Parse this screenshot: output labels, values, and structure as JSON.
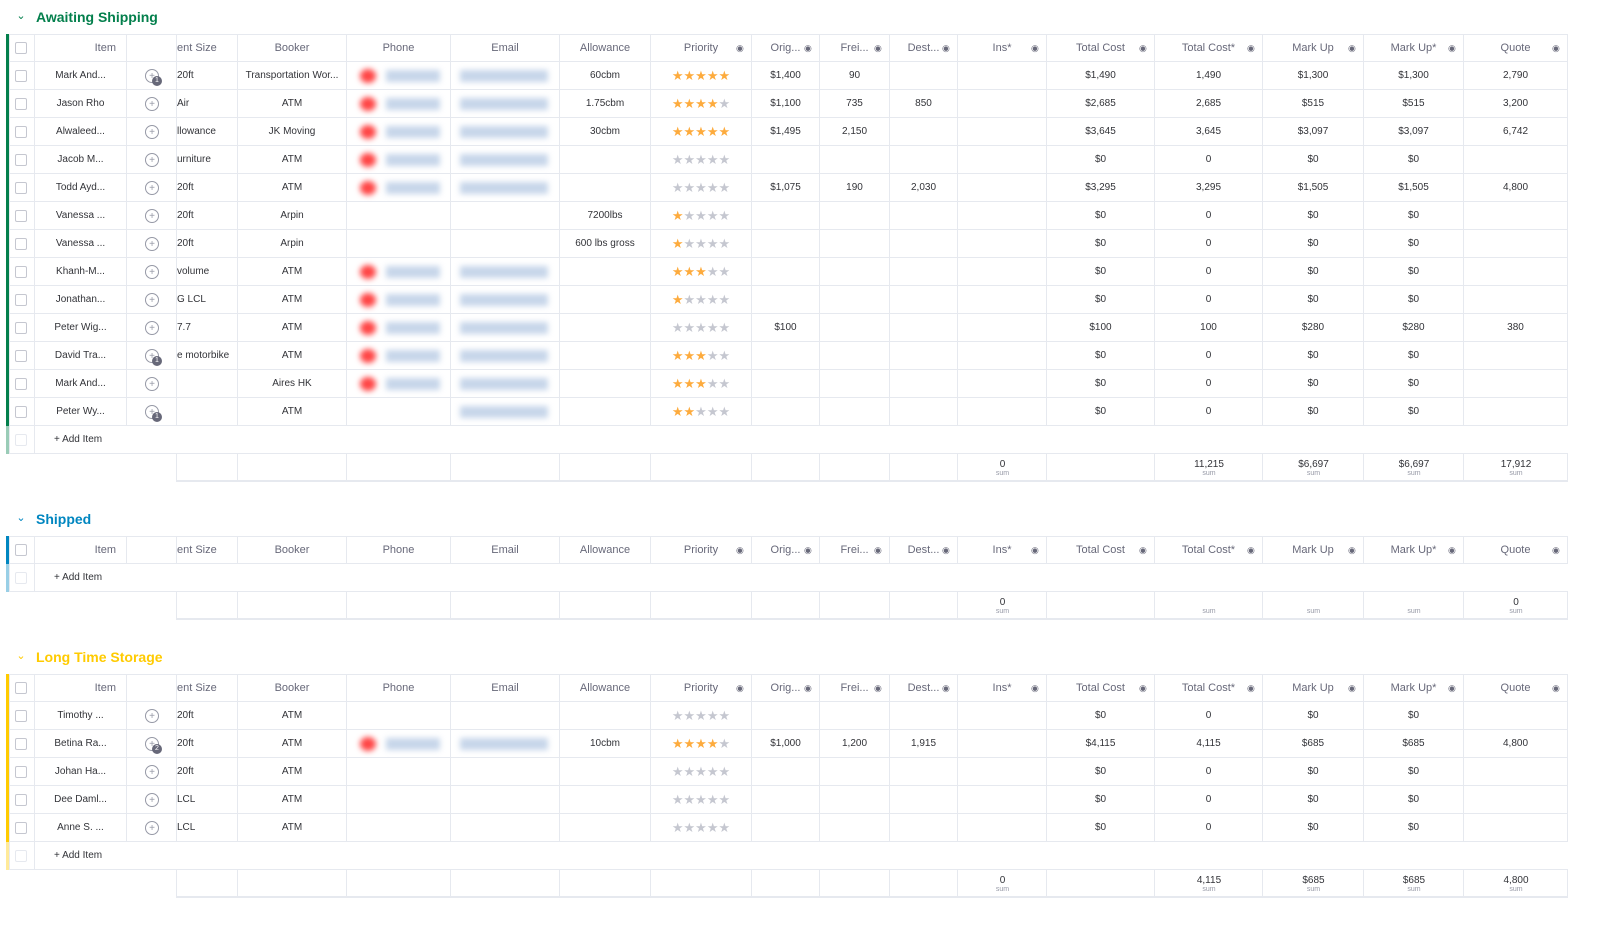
{
  "groups": [
    {
      "title": "Awaiting Shipping",
      "color": "#037f4c",
      "columns": [
        "Item",
        "ent Size",
        "Booker",
        "Phone",
        "Email",
        "Allowance",
        "Priority",
        "Orig...",
        "Frei...",
        "Dest...",
        "Ins*",
        "Total Cost",
        "Total Cost*",
        "Mark Up",
        "Mark Up*",
        "Quote"
      ],
      "rows": [
        {
          "cells": [
            "Mark And...",
            "20ft",
            "Transportation Wor...",
            null,
            null,
            "60cbm",
            5,
            "$1,400",
            "90",
            null,
            null,
            "$1,490",
            "1,490",
            "$1,300",
            "$1,300",
            "2,790"
          ],
          "updates": 1
        },
        {
          "cells": [
            "Jason Rho",
            "Air",
            "ATM",
            null,
            null,
            "1.75cbm",
            4,
            "$1,100",
            "735",
            "850",
            null,
            "$2,685",
            "2,685",
            "$515",
            "$515",
            "3,200"
          ],
          "updates": null
        },
        {
          "cells": [
            "Alwaleed...",
            "llowance",
            "JK Moving",
            null,
            null,
            "30cbm",
            5,
            "$1,495",
            "2,150",
            null,
            null,
            "$3,645",
            "3,645",
            "$3,097",
            "$3,097",
            "6,742"
          ],
          "updates": null
        },
        {
          "cells": [
            "Jacob M...",
            "urniture",
            "ATM",
            null,
            null,
            null,
            0,
            null,
            null,
            null,
            null,
            "$0",
            "0",
            "$0",
            "$0",
            null
          ],
          "updates": null
        },
        {
          "cells": [
            "Todd Ayd...",
            "20ft",
            "ATM",
            null,
            null,
            null,
            0,
            "$1,075",
            "190",
            "2,030",
            null,
            "$3,295",
            "3,295",
            "$1,505",
            "$1,505",
            "4,800"
          ],
          "updates": null
        },
        {
          "cells": [
            "Vanessa ...",
            "20ft",
            "Arpin",
            null,
            null,
            "7200lbs",
            1,
            null,
            null,
            null,
            null,
            "$0",
            "0",
            "$0",
            "$0",
            null
          ],
          "updates": null
        },
        {
          "cells": [
            "Vanessa ...",
            "20ft",
            "Arpin",
            null,
            null,
            "600 lbs gross",
            1,
            null,
            null,
            null,
            null,
            "$0",
            "0",
            "$0",
            "$0",
            null
          ],
          "updates": null
        },
        {
          "cells": [
            "Khanh-M...",
            "volume",
            "ATM",
            null,
            null,
            null,
            3,
            null,
            null,
            null,
            null,
            "$0",
            "0",
            "$0",
            "$0",
            null
          ],
          "updates": null
        },
        {
          "cells": [
            "Jonathan...",
            "G LCL",
            "ATM",
            null,
            null,
            null,
            1,
            null,
            null,
            null,
            null,
            "$0",
            "0",
            "$0",
            "$0",
            null
          ],
          "updates": null
        },
        {
          "cells": [
            "Peter Wig...",
            "7.7",
            "ATM",
            null,
            null,
            null,
            0,
            "$100",
            null,
            null,
            null,
            "$100",
            "100",
            "$280",
            "$280",
            "380"
          ],
          "updates": null
        },
        {
          "cells": [
            "David Tra...",
            "e motorbike",
            "ATM",
            null,
            null,
            null,
            3,
            null,
            null,
            null,
            null,
            "$0",
            "0",
            "$0",
            "$0",
            null
          ],
          "updates": 1
        },
        {
          "cells": [
            "Mark And...",
            null,
            "Aires HK",
            null,
            null,
            null,
            3,
            null,
            null,
            null,
            null,
            "$0",
            "0",
            "$0",
            "$0",
            null
          ],
          "updates": null
        },
        {
          "cells": [
            "Peter Wy...",
            null,
            "ATM",
            null,
            null,
            null,
            2,
            null,
            null,
            null,
            null,
            "$0",
            "0",
            "$0",
            "$0",
            null
          ],
          "updates": 1
        }
      ],
      "add_item": "+ Add Item",
      "footer": [
        null,
        null,
        null,
        null,
        null,
        null,
        null,
        null,
        null,
        null,
        {
          "value": "0",
          "label": "sum"
        },
        null,
        {
          "value": "11,215",
          "label": "sum"
        },
        {
          "value": "$6,697",
          "label": "sum"
        },
        {
          "value": "$6,697",
          "label": "sum"
        },
        {
          "value": "17,912",
          "label": "sum"
        }
      ]
    },
    {
      "title": "Shipped",
      "color": "#0086c0",
      "columns": [
        "Item",
        "ent Size",
        "Booker",
        "Phone",
        "Email",
        "Allowance",
        "Priority",
        "Orig...",
        "Frei...",
        "Dest...",
        "Ins*",
        "Total Cost",
        "Total Cost*",
        "Mark Up",
        "Mark Up*",
        "Quote"
      ],
      "rows": [],
      "add_item": "+ Add Item",
      "footer": [
        null,
        null,
        null,
        null,
        null,
        null,
        null,
        null,
        null,
        null,
        {
          "value": "0",
          "label": "sum"
        },
        null,
        {
          "label": "sum"
        },
        {
          "label": "sum"
        },
        {
          "label": "sum"
        },
        {
          "value": "0",
          "label": "sum"
        }
      ]
    },
    {
      "title": "Long Time Storage",
      "color": "#ffcb00",
      "columns": [
        "Item",
        "ent Size",
        "Booker",
        "Phone",
        "Email",
        "Allowance",
        "Priority",
        "Orig...",
        "Frei...",
        "Dest...",
        "Ins*",
        "Total Cost",
        "Total Cost*",
        "Mark Up",
        "Mark Up*",
        "Quote"
      ],
      "rows": [
        {
          "cells": [
            "Timothy ...",
            "20ft",
            "ATM",
            null,
            null,
            null,
            0,
            null,
            null,
            null,
            null,
            "$0",
            "0",
            "$0",
            "$0",
            null
          ],
          "updates": null
        },
        {
          "cells": [
            "Betina Ra...",
            "20ft",
            "ATM",
            null,
            null,
            "10cbm",
            4,
            "$1,000",
            "1,200",
            "1,915",
            null,
            "$4,115",
            "4,115",
            "$685",
            "$685",
            "4,800"
          ],
          "updates": 2
        },
        {
          "cells": [
            "Johan Ha...",
            "20ft",
            "ATM",
            null,
            null,
            null,
            0,
            null,
            null,
            null,
            null,
            "$0",
            "0",
            "$0",
            "$0",
            null
          ],
          "updates": null
        },
        {
          "cells": [
            "Dee Daml...",
            "LCL",
            "ATM",
            null,
            null,
            null,
            0,
            null,
            null,
            null,
            null,
            "$0",
            "0",
            "$0",
            "$0",
            null
          ],
          "updates": null
        },
        {
          "cells": [
            "Anne S. ...",
            "LCL",
            "ATM",
            null,
            null,
            null,
            0,
            null,
            null,
            null,
            null,
            "$0",
            "0",
            "$0",
            "$0",
            null
          ],
          "updates": null
        }
      ],
      "add_item": "+ Add Item",
      "footer": [
        null,
        null,
        null,
        null,
        null,
        null,
        null,
        null,
        null,
        null,
        {
          "value": "0",
          "label": "sum"
        },
        null,
        {
          "value": "4,115",
          "label": "sum"
        },
        {
          "value": "$685",
          "label": "sum"
        },
        {
          "value": "$685",
          "label": "sum"
        },
        {
          "value": "4,800",
          "label": "sum"
        }
      ]
    }
  ]
}
